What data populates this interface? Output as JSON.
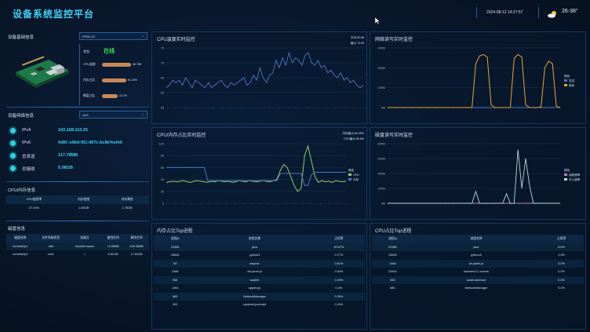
{
  "header": {
    "title": "设备系统监控平台",
    "datetime": "2024-08-12 14:27:57",
    "temp": "26-38°",
    "weather_icon": "sun-cloud-icon"
  },
  "device": {
    "title": "设备基础信息",
    "selector": "RPB4-02",
    "status_label": "状态",
    "status": "在线",
    "bars": [
      {
        "label": "CPU温度",
        "value": "60.785",
        "pct": 0.62
      },
      {
        "label": "内存占比",
        "value": "51.15%",
        "pct": 0.51
      },
      {
        "label": "磁盘占比",
        "value": "32.7%",
        "pct": 0.33
      }
    ]
  },
  "network": {
    "title": "设备网络信息",
    "selector": "eth0",
    "rows": [
      {
        "label": "IPv4",
        "value": "192.168.110.25"
      },
      {
        "label": "IPv6",
        "value": "fe80::e9bd:f51:497c:bc8e%eth0"
      },
      {
        "label": "总发送",
        "value": "117.78MB"
      },
      {
        "label": "总接收",
        "value": "5.08GB"
      }
    ]
  },
  "cpumem": {
    "title": "CPU/内存信息",
    "headers": [
      "CPU使用率",
      "内存使用",
      "内存剩余"
    ],
    "row": [
      "37.20%",
      "1.84GB",
      "1.76GB"
    ]
  },
  "disk": {
    "title": "磁盘信息",
    "headers": [
      "磁盘名称",
      "文件系统类型",
      "挂载点",
      "使用空间",
      "剩余空间"
    ],
    "rows": [
      [
        "mmcblk0p1",
        "vfat",
        "/boot/firmware",
        "74.65MB",
        "435.35MB"
      ],
      [
        "mmcblk0p2",
        "ext4",
        "/",
        "8.81GB",
        "17.84GB"
      ]
    ]
  },
  "cpu_temp": {
    "title": "CPU温度实时监控",
    "legend": [
      "平均:62.88",
      "最大:74.69"
    ],
    "yticks": [
      "75",
      "70",
      "65",
      "60",
      "55"
    ]
  },
  "disk_rw": {
    "title": "网络读写实时监控",
    "yticks": [
      "450M",
      "300M",
      "150M",
      "0M"
    ],
    "legend_title": "颜色",
    "legend": [
      "发送",
      "接收"
    ]
  },
  "cpu_mem": {
    "title": "CPU/内存占比实时监控",
    "legend": [
      "内存最大:60.09%",
      "CPU最大:96.5%"
    ],
    "yticks": [
      "100",
      "80",
      "60",
      "40",
      "20",
      "0"
    ],
    "legend2_title": "颜色",
    "legend2": [
      "CPU",
      "内存"
    ]
  },
  "disk_io": {
    "title": "磁盘读写实时监控",
    "yticks": [
      "800M",
      "600M",
      "400M",
      "200M",
      "0M"
    ],
    "legend_title": "颜色",
    "legend": [
      "读取速率",
      "写入速率"
    ]
  },
  "mem_top": {
    "title": "内存占比Top进程",
    "headers": [
      "进程id",
      "进程名称",
      "占用率"
    ],
    "rows": [
      [
        "22355",
        "java",
        "49.67%"
      ],
      [
        "23833",
        "python3",
        "0.77%"
      ],
      [
        "767",
        "wayvnc",
        "0.61%"
      ],
      [
        "1468",
        "wf-panel-pi",
        "0.54%"
      ],
      [
        "956",
        "wayfire",
        "0.49%"
      ],
      [
        "1453",
        "applet.py",
        "0.4%"
      ],
      [
        "680",
        "NetworkManager",
        "0.35%"
      ],
      [
        "263",
        "systemd-journald",
        "0.34%"
      ]
    ]
  },
  "cpu_top": {
    "title": "CPU占比Top进程",
    "headers": [
      "进程id",
      "进程名称",
      "占用率"
    ],
    "rows": [
      [
        "22355",
        "java",
        "6.9%"
      ],
      [
        "23833",
        "python3",
        "2.3%"
      ],
      [
        "1468",
        "wf-panel-pi",
        "0.2%"
      ],
      [
        "23442",
        "kworker/3:1-events",
        "0.2%"
      ],
      [
        "553",
        "avahi-daemon",
        "0.2%"
      ],
      [
        "680",
        "NetworkManager",
        "0.2%"
      ]
    ]
  },
  "chart_data": [
    {
      "type": "line",
      "title": "CPU温度实时监控",
      "ylim": [
        52,
        76
      ],
      "series": [
        {
          "name": "",
          "values": [
            60,
            61,
            63,
            62,
            63,
            61,
            64,
            62,
            60,
            63,
            62,
            61,
            60,
            62,
            60,
            61,
            62,
            63,
            61,
            60,
            62,
            61,
            62,
            63,
            64,
            61,
            62,
            65,
            63,
            68,
            64,
            62,
            65,
            66,
            71,
            68,
            72,
            69,
            74,
            70,
            72,
            71,
            69,
            73,
            74,
            70,
            69,
            71,
            68,
            69,
            66,
            67,
            65,
            64,
            66,
            63,
            64,
            62,
            63,
            61,
            60,
            61
          ]
        }
      ]
    },
    {
      "type": "line",
      "title": "网络读写实时监控",
      "ylim": [
        0,
        450
      ],
      "series": [
        {
          "name": "发送",
          "values": [
            0,
            0,
            0,
            0,
            0,
            0,
            0,
            0,
            0,
            0,
            0,
            0,
            0,
            0,
            0,
            0,
            0,
            0,
            0,
            0,
            0,
            0,
            0,
            0,
            0,
            0,
            0,
            0,
            0,
            0,
            0,
            0,
            0,
            0,
            0,
            0,
            0,
            0,
            0,
            0,
            0,
            0,
            0,
            0,
            0,
            0
          ]
        },
        {
          "name": "接收",
          "values": [
            0,
            0,
            0,
            0,
            0,
            0,
            0,
            0,
            0,
            0,
            0,
            0,
            0,
            0,
            0,
            0,
            0,
            0,
            0,
            0,
            0,
            0,
            0,
            330,
            390,
            400,
            380,
            20,
            0,
            0,
            0,
            0,
            0,
            370,
            400,
            380,
            20,
            0,
            0,
            0,
            5,
            300,
            350,
            330,
            10,
            0
          ]
        }
      ]
    },
    {
      "type": "line",
      "title": "CPU/内存占比实时监控",
      "ylim": [
        0,
        100
      ],
      "series": [
        {
          "name": "CPU",
          "values": [
            35,
            36,
            37,
            36,
            37,
            38,
            36,
            35,
            37,
            38,
            37,
            36,
            35,
            37,
            36,
            38,
            37,
            36,
            37,
            35,
            36,
            38,
            37,
            36,
            38,
            37,
            36,
            37,
            38,
            37,
            36,
            38,
            40,
            55,
            65,
            60,
            45,
            30,
            20,
            25,
            80,
            96,
            70,
            45,
            35,
            38,
            36,
            37,
            35,
            38,
            37,
            36,
            37
          ]
        },
        {
          "name": "内存",
          "values": [
            60,
            60,
            60,
            60,
            60,
            60,
            60,
            60,
            60,
            60,
            60,
            60,
            38,
            38,
            38,
            38,
            38,
            38,
            38,
            38,
            38,
            38,
            38,
            38,
            38,
            38,
            38,
            38,
            38,
            38,
            38,
            38,
            38,
            50,
            50,
            50,
            50,
            50,
            50,
            50,
            30,
            30,
            48,
            52,
            52,
            52,
            52,
            52,
            52,
            52,
            52,
            52,
            52
          ]
        }
      ]
    },
    {
      "type": "line",
      "title": "磁盘读写实时监控",
      "ylim": [
        0,
        800
      ],
      "series": [
        {
          "name": "读取速率",
          "values": [
            0,
            0,
            0,
            0,
            0,
            0,
            0,
            0,
            0,
            0,
            0,
            0,
            0,
            0,
            0,
            0,
            0,
            0,
            0,
            0,
            0,
            0,
            0,
            0,
            0,
            0,
            0,
            0,
            0,
            0,
            0,
            0,
            0,
            0,
            0,
            0,
            0,
            0,
            0,
            0,
            0,
            0,
            0,
            0,
            0,
            0
          ]
        },
        {
          "name": "写入速率",
          "values": [
            0,
            0,
            0,
            0,
            0,
            0,
            0,
            0,
            0,
            0,
            0,
            0,
            0,
            0,
            0,
            0,
            0,
            0,
            0,
            0,
            0,
            0,
            0,
            160,
            0,
            0,
            0,
            0,
            0,
            0,
            0,
            130,
            0,
            0,
            720,
            200,
            600,
            240,
            0,
            0,
            0,
            0,
            0,
            0,
            0,
            0
          ]
        }
      ]
    }
  ]
}
